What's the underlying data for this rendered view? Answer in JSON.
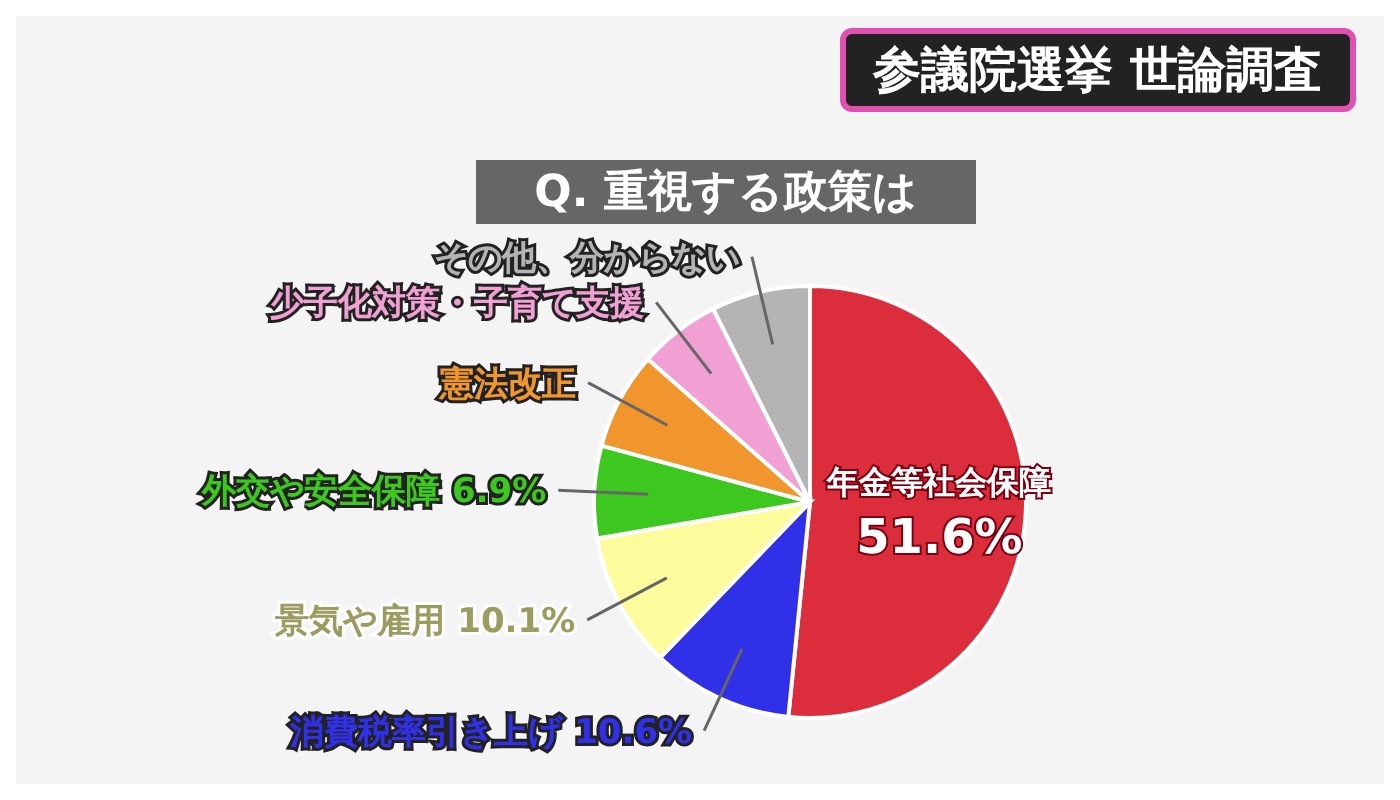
{
  "chart_data": {
    "type": "pie",
    "title": "参議院選挙 世論調査",
    "subtitle": "Q. 重視する政策は",
    "categories": [
      "年金等社会保障",
      "消費税率引き上げ",
      "景気や雇用",
      "外交や安全保障",
      "憲法改正",
      "少子化対策・子育て支援",
      "その他、分からない"
    ],
    "values": [
      51.6,
      10.6,
      10.1,
      6.9,
      7.3,
      6.1,
      7.4
    ],
    "colors": [
      "#dc2d3c",
      "#3030e8",
      "#fcfc9c",
      "#3cc81e",
      "#f0962d",
      "#f0a0d2",
      "#b4b4b4"
    ],
    "value_labels": [
      "51.6%",
      "10.6%",
      "10.1%",
      "6.9%",
      null,
      null,
      null
    ]
  }
}
